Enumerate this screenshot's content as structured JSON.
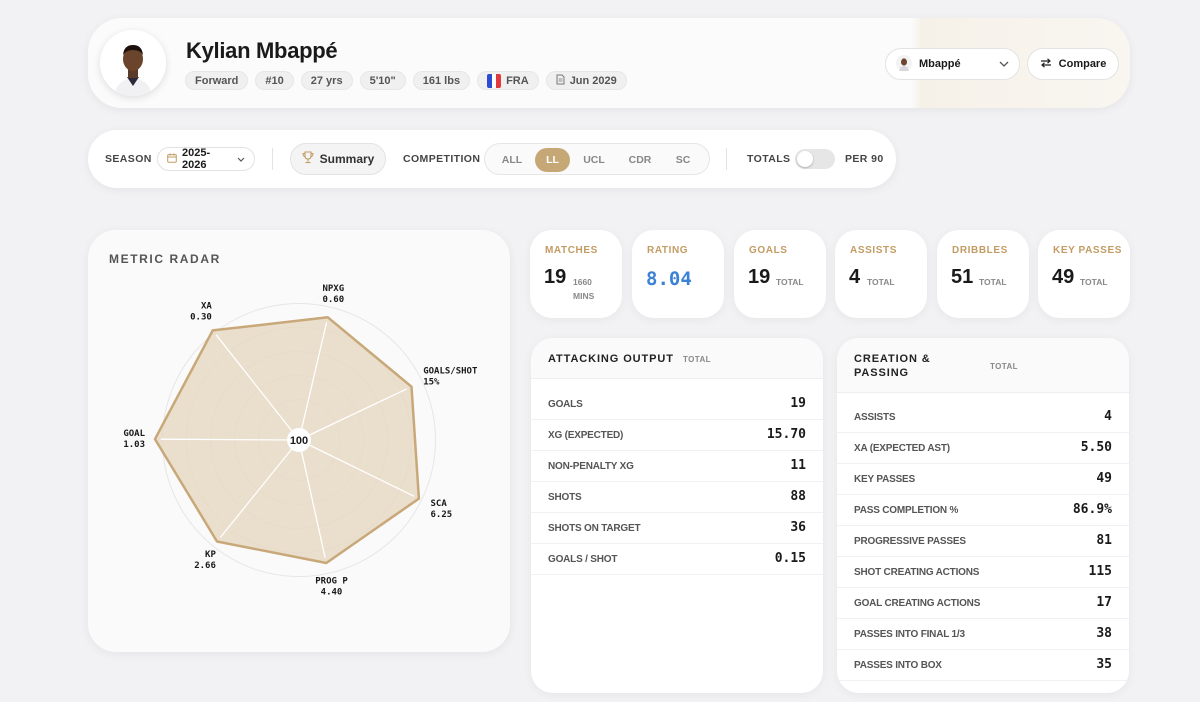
{
  "player": {
    "name": "Kylian Mbappé",
    "position": "Forward",
    "number": "#10",
    "age": "27 yrs",
    "height": "5'10\"",
    "weight": "161 lbs",
    "nation": "FRA",
    "contract": "Jun 2029"
  },
  "header_actions": {
    "player_select_value": "Mbappé",
    "compare_label": "Compare"
  },
  "filters": {
    "season_label": "SEASON",
    "season_value": "2025-2026",
    "summary_label": "Summary",
    "competition_label": "COMPETITION",
    "competitions": [
      "ALL",
      "LL",
      "UCL",
      "CDR",
      "SC"
    ],
    "active_competition": "LL",
    "totals_label": "TOTALS",
    "per90_label": "PER 90"
  },
  "radar": {
    "title": "METRIC RADAR",
    "center_label": "100",
    "axes": [
      {
        "name": "NPXG",
        "value": "0.60",
        "score": 0.84
      },
      {
        "name": "GOALS/SHOT",
        "value": "15%",
        "score": 0.83
      },
      {
        "name": "SCA",
        "value": "6.25",
        "score": 0.89
      },
      {
        "name": "PROG P",
        "value": "4.40",
        "score": 0.84
      },
      {
        "name": "KP",
        "value": "2.66",
        "score": 0.87
      },
      {
        "name": "GOAL",
        "value": "1.03",
        "score": 0.96
      },
      {
        "name": "XA",
        "value": "0.30",
        "score": 0.93
      }
    ]
  },
  "stats": [
    {
      "label": "MATCHES",
      "value": "19",
      "unit_line1": "1660",
      "unit_line2": "MINS"
    },
    {
      "label": "RATING",
      "value": "8.04",
      "unit_line1": "",
      "unit_line2": ""
    },
    {
      "label": "GOALS",
      "value": "19",
      "unit_line1": "TOTAL",
      "unit_line2": ""
    },
    {
      "label": "ASSISTS",
      "value": "4",
      "unit_line1": "TOTAL",
      "unit_line2": ""
    },
    {
      "label": "DRIBBLES",
      "value": "51",
      "unit_line1": "TOTAL",
      "unit_line2": ""
    },
    {
      "label": "KEY PASSES",
      "value": "49",
      "unit_line1": "TOTAL",
      "unit_line2": ""
    }
  ],
  "attacking": {
    "title": "ATTACKING OUTPUT",
    "unit": "TOTAL",
    "rows": [
      {
        "k": "Goals",
        "v": "19"
      },
      {
        "k": "xG (Expected)",
        "v": "15.70"
      },
      {
        "k": "Non-Penalty xG",
        "v": "11"
      },
      {
        "k": "Shots",
        "v": "88"
      },
      {
        "k": "Shots on Target",
        "v": "36"
      },
      {
        "k": "Goals / Shot",
        "v": "0.15"
      }
    ]
  },
  "creation": {
    "title_line1": "CREATION &",
    "title_line2": "PASSING",
    "unit": "TOTAL",
    "rows": [
      {
        "k": "Assists",
        "v": "4"
      },
      {
        "k": "xA (Expected Ast)",
        "v": "5.50"
      },
      {
        "k": "Key Passes",
        "v": "49"
      },
      {
        "k": "Pass Completion %",
        "v": "86.9%"
      },
      {
        "k": "Progressive Passes",
        "v": "81"
      },
      {
        "k": "Shot Creating Actions",
        "v": "115"
      },
      {
        "k": "Goal Creating Actions",
        "v": "17"
      },
      {
        "k": "Passes into Final 1/3",
        "v": "38"
      },
      {
        "k": "Passes into Box",
        "v": "35"
      }
    ]
  },
  "colors": {
    "accent": "#c6a877",
    "accent_text": "#c29c63",
    "rating": "#3b82d6",
    "radar_fill": "#e6d8c3",
    "radar_stroke": "#c8a879"
  }
}
